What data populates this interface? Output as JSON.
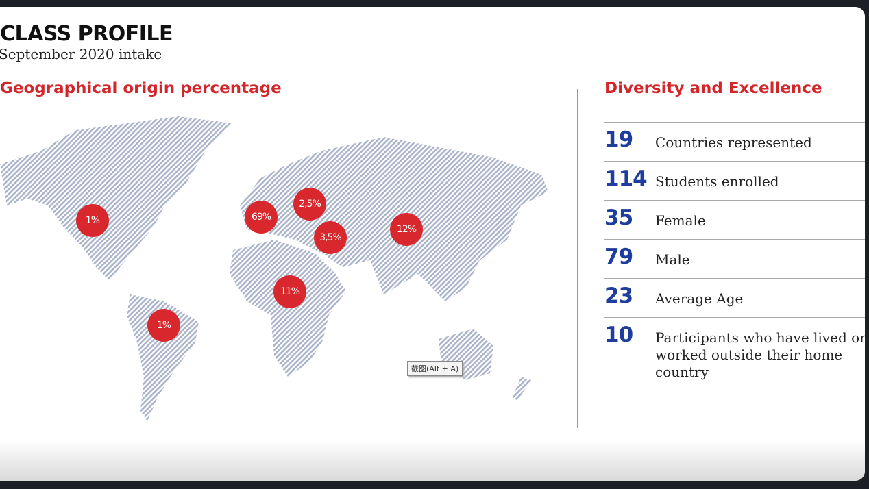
{
  "header": {
    "title": "CLASS PROFILE",
    "subtitle": "September 2020 intake"
  },
  "geo": {
    "heading": "Geographical origin percentage",
    "bubbles": [
      {
        "region": "North America",
        "label": "1%"
      },
      {
        "region": "South America",
        "label": "1%"
      },
      {
        "region": "Western Europe",
        "label": "69%"
      },
      {
        "region": "Eastern Europe",
        "label": "2,5%"
      },
      {
        "region": "Middle East",
        "label": "3,5%"
      },
      {
        "region": "Asia",
        "label": "12%"
      },
      {
        "region": "Africa",
        "label": "11%"
      }
    ]
  },
  "diversity": {
    "heading": "Diversity and Excellence",
    "stats": [
      {
        "value": "19",
        "label": "Countries represented"
      },
      {
        "value": "114",
        "label": "Students enrolled"
      },
      {
        "value": "35",
        "label": "Female"
      },
      {
        "value": "79",
        "label": "Male"
      },
      {
        "value": "23",
        "label": "Average Age"
      },
      {
        "value": "10",
        "label": "Participants who have lived or worked outside their home country"
      }
    ]
  },
  "tooltip": "截图(Alt + A)",
  "colors": {
    "accent": "#d3262b",
    "number": "#1f3d9c",
    "map": "#a9b3c9"
  }
}
